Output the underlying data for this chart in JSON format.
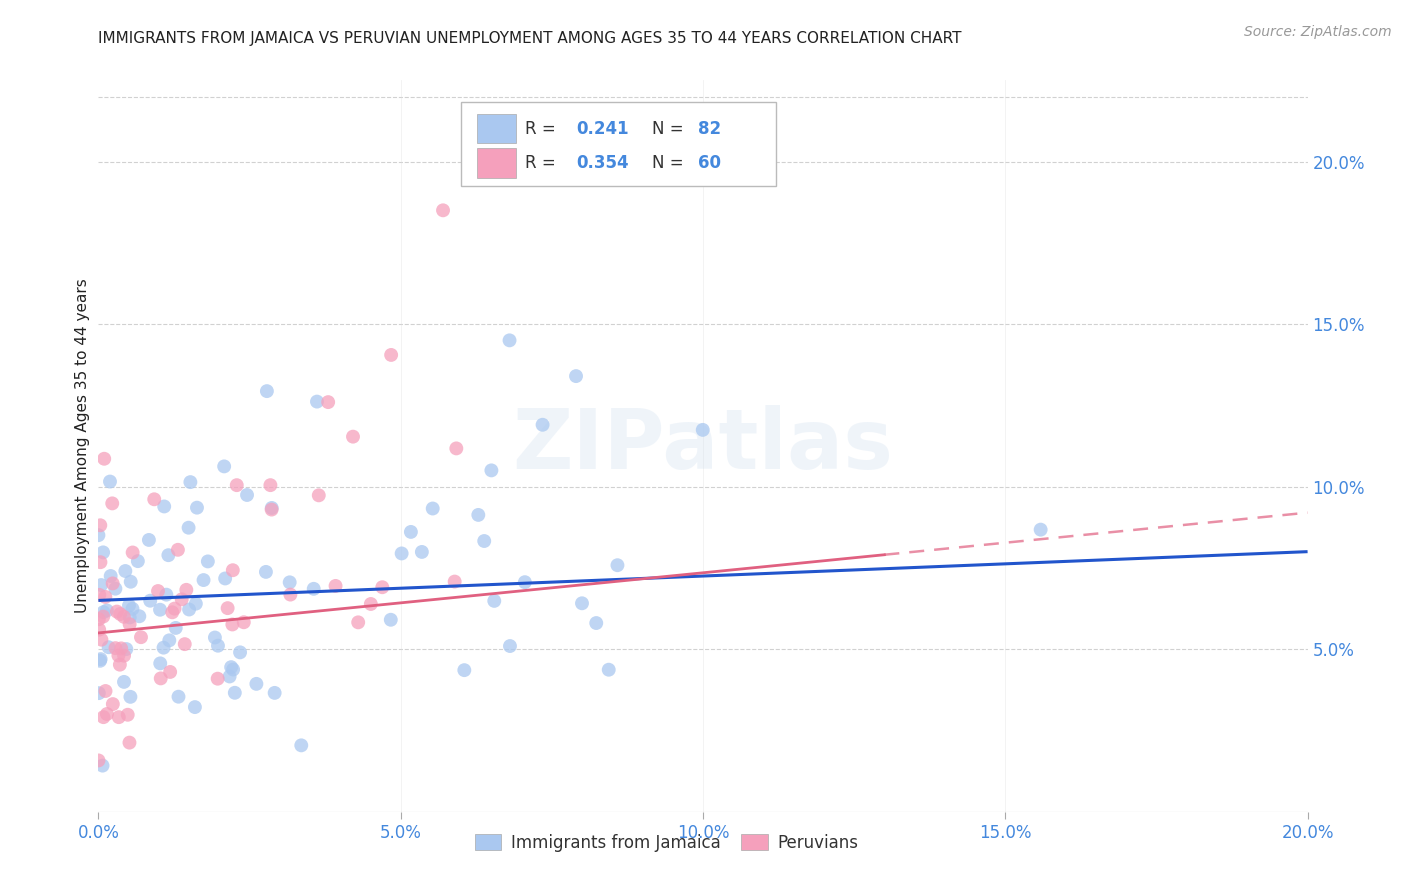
{
  "title": "IMMIGRANTS FROM JAMAICA VS PERUVIAN UNEMPLOYMENT AMONG AGES 35 TO 44 YEARS CORRELATION CHART",
  "source": "Source: ZipAtlas.com",
  "ylabel": "Unemployment Among Ages 35 to 44 years",
  "xlabel_ticks": [
    "0.0%",
    "5.0%",
    "10.0%",
    "15.0%",
    "20.0%"
  ],
  "xlabel_vals": [
    0.0,
    0.05,
    0.1,
    0.15,
    0.2
  ],
  "ylabel_ticks": [
    "5.0%",
    "10.0%",
    "15.0%",
    "20.0%"
  ],
  "ylabel_vals": [
    0.05,
    0.1,
    0.15,
    0.2
  ],
  "xmin": 0.0,
  "xmax": 0.2,
  "ymin": 0.0,
  "ymax": 0.225,
  "jamaica_R": 0.241,
  "jamaica_N": 82,
  "peru_R": 0.354,
  "peru_N": 60,
  "jamaica_color": "#aac8f0",
  "peru_color": "#f5a0bc",
  "jamaica_line_color": "#2255cc",
  "peru_line_color": "#e06080",
  "legend_label_jamaica": "Immigrants from Jamaica",
  "legend_label_peru": "Peruvians",
  "background_color": "#ffffff",
  "grid_color": "#cccccc",
  "title_color": "#222222",
  "source_color": "#999999",
  "tick_color": "#4488dd",
  "jamaica_seed": 7,
  "peru_seed": 13
}
